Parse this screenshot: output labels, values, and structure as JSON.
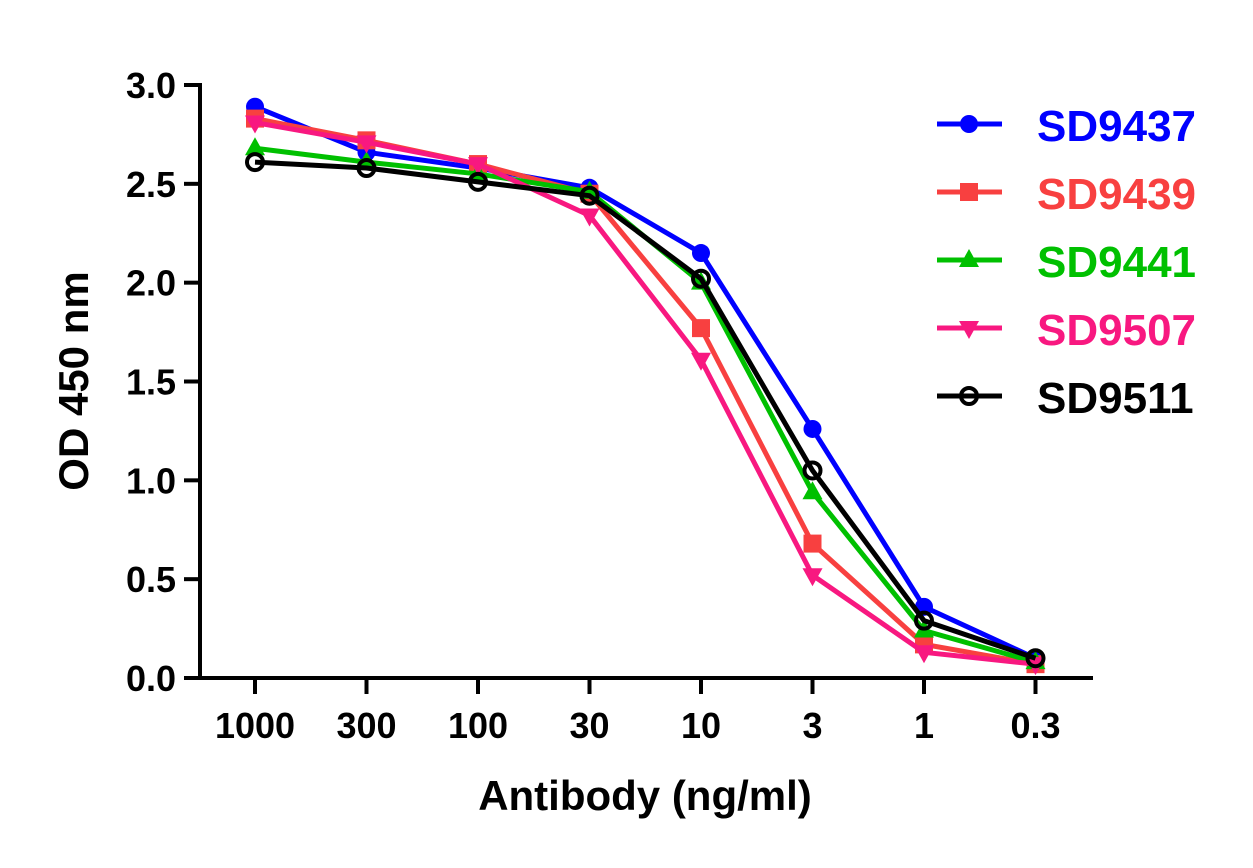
{
  "chart_data": {
    "type": "line",
    "title": "",
    "xlabel": "Antibody (ng/ml)",
    "ylabel": "OD 450 nm",
    "categories": [
      "1000",
      "300",
      "100",
      "30",
      "10",
      "3",
      "1",
      "0.3"
    ],
    "ylim": [
      0,
      3.0
    ],
    "yticks": [
      "0.0",
      "0.5",
      "1.0",
      "1.5",
      "2.0",
      "2.5",
      "3.0"
    ],
    "grid": false,
    "legend_position": "top-right",
    "series": [
      {
        "name": "SD9437",
        "color": "#0000FF",
        "marker": "circle",
        "values": [
          2.89,
          2.66,
          2.58,
          2.48,
          2.15,
          1.26,
          0.36,
          0.1
        ]
      },
      {
        "name": "SD9439",
        "color": "#F84040",
        "marker": "square",
        "values": [
          2.83,
          2.72,
          2.6,
          2.45,
          1.77,
          0.68,
          0.17,
          0.07
        ]
      },
      {
        "name": "SD9441",
        "color": "#00C000",
        "marker": "triangle-up",
        "values": [
          2.68,
          2.61,
          2.55,
          2.46,
          2.0,
          0.94,
          0.24,
          0.08
        ]
      },
      {
        "name": "SD9507",
        "color": "#F81880",
        "marker": "triangle-down",
        "values": [
          2.81,
          2.71,
          2.6,
          2.34,
          1.61,
          0.52,
          0.13,
          0.07
        ]
      },
      {
        "name": "SD9511",
        "color": "#000000",
        "marker": "open-circle",
        "values": [
          2.61,
          2.58,
          2.51,
          2.44,
          2.02,
          1.05,
          0.29,
          0.1
        ]
      }
    ]
  }
}
